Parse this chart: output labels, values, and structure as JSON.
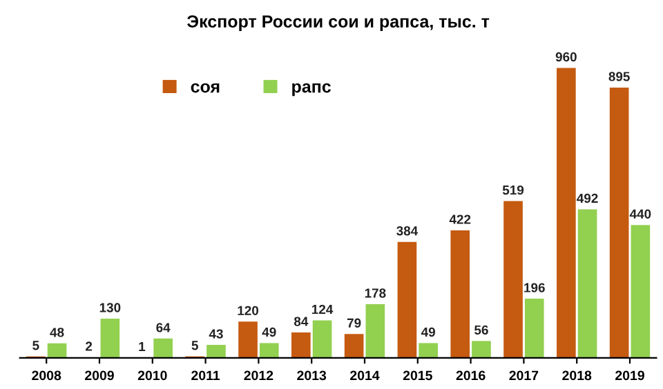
{
  "chart_data": {
    "type": "bar",
    "title": "Экспорт России сои и рапса, тыс. т",
    "categories": [
      "2008",
      "2009",
      "2010",
      "2011",
      "2012",
      "2013",
      "2014",
      "2015",
      "2016",
      "2017",
      "2018",
      "2019"
    ],
    "series": [
      {
        "name": "соя",
        "color": "#c55a11",
        "values": [
          5,
          2,
          1,
          5,
          120,
          84,
          79,
          384,
          422,
          519,
          960,
          895
        ]
      },
      {
        "name": "рапс",
        "color": "#92d050",
        "values": [
          48,
          130,
          64,
          43,
          49,
          124,
          178,
          49,
          56,
          196,
          492,
          440
        ]
      }
    ],
    "data_labels": true,
    "legend": "top left",
    "grid": false,
    "tick_labels": "x"
  }
}
